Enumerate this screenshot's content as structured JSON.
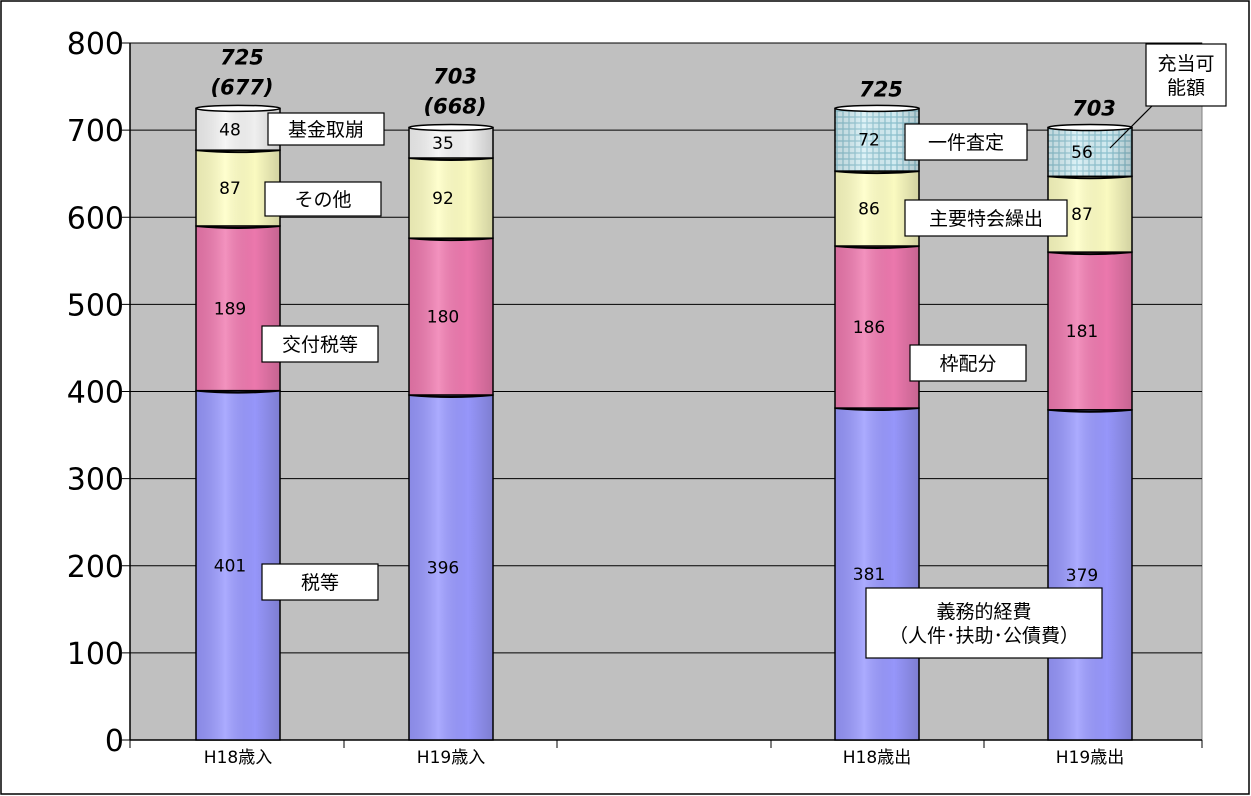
{
  "chart_data": {
    "type": "bar",
    "stacked": true,
    "categories": [
      "H18歳入",
      "H19歳入",
      "H18歳出",
      "H19歳出"
    ],
    "ylim": [
      0,
      800
    ],
    "yticks": [
      "0",
      "100",
      "200",
      "300",
      "400",
      "500",
      "600",
      "700",
      "800"
    ],
    "grid": true,
    "bars": [
      {
        "category": "H18歳入",
        "total_label": "725",
        "sub_label": "(677)",
        "segments": [
          {
            "value": 401,
            "label": "税等",
            "color": "#9999ff"
          },
          {
            "value": 189,
            "label": "交付税等",
            "color": "#f07ab0"
          },
          {
            "value": 87,
            "label": "その他",
            "color": "#ffffc4"
          },
          {
            "value": 48,
            "label": "基金取崩",
            "color": "#f4f4f4"
          }
        ]
      },
      {
        "category": "H19歳入",
        "total_label": "703",
        "sub_label": "(668)",
        "segments": [
          {
            "value": 396,
            "label": "",
            "color": "#9999ff"
          },
          {
            "value": 180,
            "label": "",
            "color": "#f07ab0"
          },
          {
            "value": 92,
            "label": "",
            "color": "#ffffc4"
          },
          {
            "value": 35,
            "label": "",
            "color": "#f4f4f4"
          }
        ]
      },
      {
        "category": "H18歳出",
        "total_label": "725",
        "sub_label": "",
        "segments": [
          {
            "value": 381,
            "label": "義務的経費\n（人件･扶助･公債費）",
            "color": "#9999ff"
          },
          {
            "value": 186,
            "label": "枠配分",
            "color": "#f07ab0"
          },
          {
            "value": 86,
            "label": "主要特会繰出",
            "color": "#ffffc4"
          },
          {
            "value": 72,
            "label": "一件査定",
            "color": "#cfeef4"
          }
        ]
      },
      {
        "category": "H19歳出",
        "total_label": "703",
        "sub_label": "",
        "segments": [
          {
            "value": 379,
            "label": "",
            "color": "#9999ff"
          },
          {
            "value": 181,
            "label": "",
            "color": "#f07ab0"
          },
          {
            "value": 87,
            "label": "",
            "color": "#ffffc4"
          },
          {
            "value": 56,
            "label": "充当可\n能額",
            "color": "#cfeef4"
          }
        ]
      }
    ]
  }
}
